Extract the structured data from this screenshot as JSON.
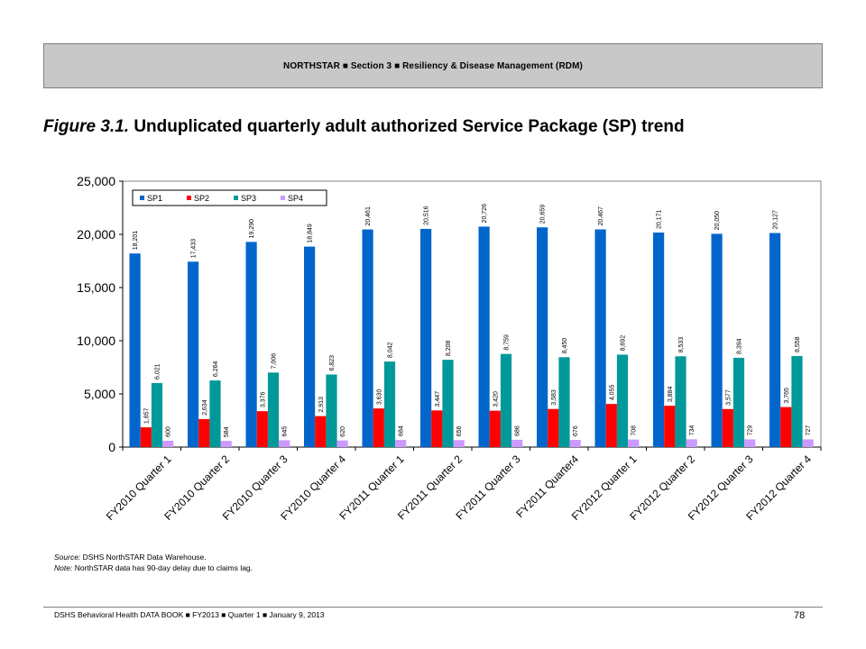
{
  "header": {
    "text": "NORTHSTAR ■  Section 3  ■  Resiliency & Disease Management (RDM)"
  },
  "figure": {
    "number": "Figure 3.1.",
    "title": "Unduplicated quarterly adult authorized Service Package (SP) trend"
  },
  "chart_data": {
    "type": "bar",
    "categories": [
      "FY2010 Quarter 1",
      "FY2010 Quarter 2",
      "FY2010 Quarter 3",
      "FY2010 Quarter 4",
      "FY2011 Quarter 1",
      "FY2011 Quarter 2",
      "FY2011 Quarter 3",
      "FY2011 Quarter4",
      "FY2012 Quarter 1",
      "FY2012 Quarter 2",
      "FY2012 Quarter 3",
      "FY2012 Quarter 4"
    ],
    "series": [
      {
        "name": "SP1",
        "color": "#0066cc",
        "values": [
          18201,
          17433,
          19290,
          18849,
          20461,
          20516,
          20726,
          20659,
          20467,
          20171,
          20050,
          20127
        ],
        "labels": [
          "18,201",
          "17,433",
          "19,290",
          "18,849",
          "20,461",
          "20,516",
          "20,726",
          "20,659",
          "20,467",
          "20,171",
          "20,050",
          "20,127"
        ]
      },
      {
        "name": "SP2",
        "color": "#ff0000",
        "values": [
          1857,
          2634,
          3376,
          2913,
          3630,
          3447,
          3420,
          3583,
          4055,
          3884,
          3577,
          3765
        ],
        "labels": [
          "1,857",
          "2,634",
          "3,376",
          "2,913",
          "3,630",
          "3,447",
          "3,420",
          "3,583",
          "4,055",
          "3,884",
          "3,577",
          "3,765"
        ]
      },
      {
        "name": "SP3",
        "color": "#009999",
        "values": [
          6021,
          6264,
          7006,
          6823,
          8042,
          8208,
          8759,
          8450,
          8692,
          8533,
          8394,
          8558
        ],
        "labels": [
          "6,021",
          "6,264",
          "7,006",
          "6,823",
          "8,042",
          "8,208",
          "8,759",
          "8,450",
          "8,692",
          "8,533",
          "8,394",
          "8,558"
        ]
      },
      {
        "name": "SP4",
        "color": "#cc99ff",
        "values": [
          600,
          584,
          645,
          620,
          684,
          656,
          686,
          676,
          708,
          734,
          729,
          727
        ],
        "labels": [
          "600",
          "584",
          "645",
          "620",
          "684",
          "656",
          "686",
          "676",
          "708",
          "734",
          "729",
          "727"
        ]
      }
    ],
    "ylim": [
      0,
      25000
    ],
    "yticks": [
      0,
      5000,
      10000,
      15000,
      20000,
      25000
    ],
    "ytick_labels": [
      "0",
      "5,000",
      "10,000",
      "15,000",
      "20,000",
      "25,000"
    ],
    "legend": "top-left",
    "grid": false
  },
  "notes": {
    "source_label": "Source:",
    "source_text": " DSHS NorthSTAR Data Warehouse.",
    "note_label": "Note:",
    "note_text": " NorthSTAR data has 90-day delay due to claims lag."
  },
  "footer": {
    "text": "DSHS Behavioral Health DATA BOOK  ■  FY2013  ■  Quarter 1 ■  January  9, 2013",
    "page": "78"
  }
}
